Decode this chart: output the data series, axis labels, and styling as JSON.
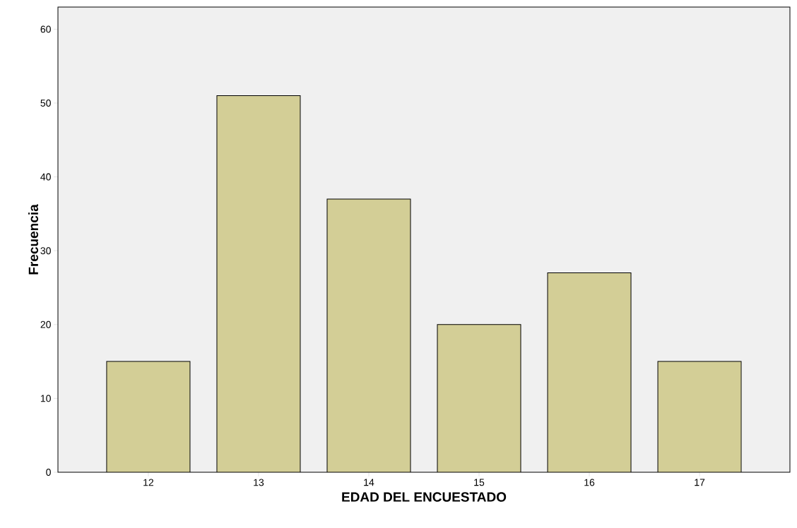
{
  "chart_data": {
    "type": "bar",
    "xlabel": "EDAD DEL ENCUESTADO",
    "ylabel": "Frecuencia",
    "categories": [
      "12",
      "13",
      "14",
      "15",
      "16",
      "17"
    ],
    "values": [
      15,
      51,
      37,
      20,
      27,
      15
    ],
    "color": "#d3ce96",
    "ylim": [
      0,
      63
    ],
    "yticks": [
      0,
      10,
      20,
      30,
      40,
      50,
      60
    ]
  }
}
